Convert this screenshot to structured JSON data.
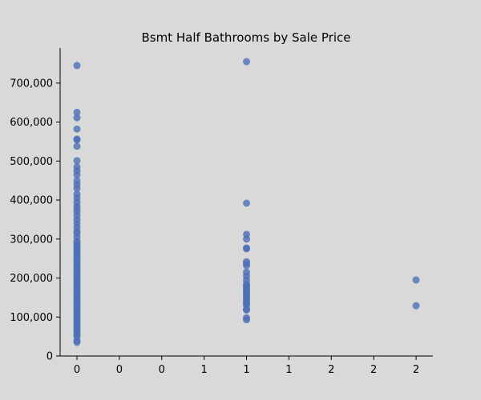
{
  "chart_data": {
    "type": "scatter",
    "title": "Bsmt Half Bathrooms by Sale Price",
    "xlabel": "",
    "ylabel": "",
    "xlim": [
      -0.1,
      2.1
    ],
    "ylim": [
      0,
      790000
    ],
    "x_ticks": [
      0,
      0.25,
      0.5,
      0.75,
      1.0,
      1.25,
      1.5,
      1.75,
      2.0
    ],
    "x_tick_labels": [
      "0",
      "0",
      "0",
      "1",
      "1",
      "1",
      "2",
      "2",
      "2"
    ],
    "y_ticks": [
      0,
      100000,
      200000,
      300000,
      400000,
      500000,
      600000,
      700000
    ],
    "y_tick_labels": [
      "0",
      "100,000",
      "200,000",
      "300,000",
      "400,000",
      "500,000",
      "600,000",
      "700,000"
    ],
    "grid": false,
    "point_color": "#4c6fb5",
    "series": [
      {
        "x": 0,
        "y": [
          745000,
          625000,
          611000,
          582000,
          556000,
          555000,
          538000,
          501000,
          485000,
          475000,
          465000,
          450000,
          440000,
          430000,
          415000,
          405000,
          395000,
          385000,
          378000,
          370000,
          360000,
          350000,
          340000,
          330000,
          320000,
          315000,
          305000,
          295000,
          290000,
          285000,
          280000,
          275000,
          270000,
          265000,
          260000,
          255000,
          250000,
          245000,
          240000,
          235000,
          230000,
          225000,
          220000,
          215000,
          210000,
          205000,
          200000,
          195000,
          190000,
          185000,
          180000,
          175000,
          170000,
          165000,
          160000,
          155000,
          150000,
          145000,
          140000,
          135000,
          130000,
          125000,
          120000,
          115000,
          110000,
          105000,
          100000,
          95000,
          90000,
          85000,
          80000,
          75000,
          70000,
          65000,
          60000,
          55000,
          50000,
          40000,
          35000
        ]
      },
      {
        "x": 1,
        "y": [
          755000,
          392000,
          312000,
          300000,
          277000,
          275000,
          242000,
          237000,
          232000,
          215000,
          205000,
          195000,
          185000,
          180000,
          175000,
          170000,
          165000,
          160000,
          155000,
          150000,
          145000,
          140000,
          135000,
          130000,
          120000,
          118000,
          98000,
          93000
        ]
      },
      {
        "x": 2,
        "y": [
          195000,
          129000
        ]
      }
    ]
  }
}
